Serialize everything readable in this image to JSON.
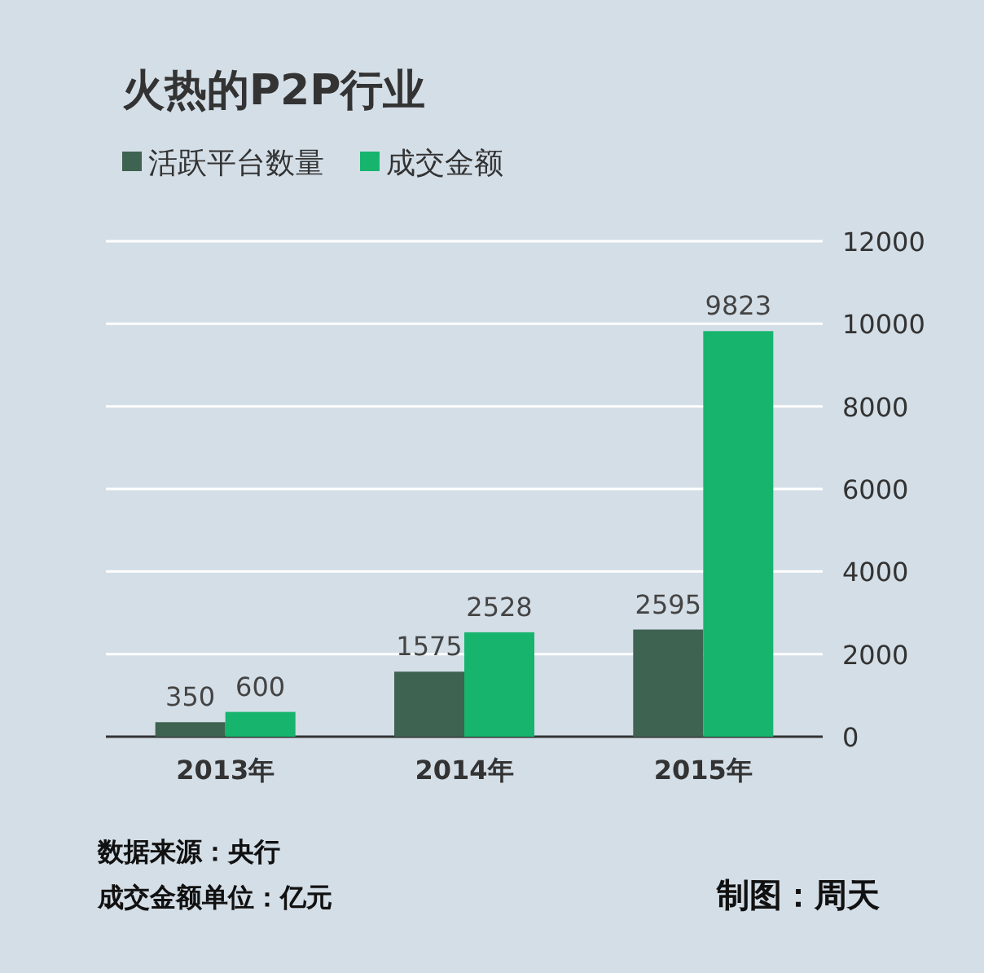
{
  "chart_data": {
    "type": "bar",
    "title": "火热的P2P行业",
    "categories": [
      "2013年",
      "2014年",
      "2015年"
    ],
    "series": [
      {
        "name": "活跃平台数量",
        "color": "#3e6351",
        "values": [
          350,
          1575,
          2595
        ]
      },
      {
        "name": "成交金额",
        "color": "#17b46e",
        "values": [
          600,
          2528,
          9823
        ]
      }
    ],
    "ylim": [
      0,
      12000
    ],
    "yticks": [
      0,
      2000,
      4000,
      6000,
      8000,
      10000,
      12000
    ],
    "grid": "y",
    "legend": "top left",
    "data_labels": true,
    "annotations": [
      "数据来源：央行",
      "成交金额单位：亿元",
      "制图：周天"
    ]
  }
}
